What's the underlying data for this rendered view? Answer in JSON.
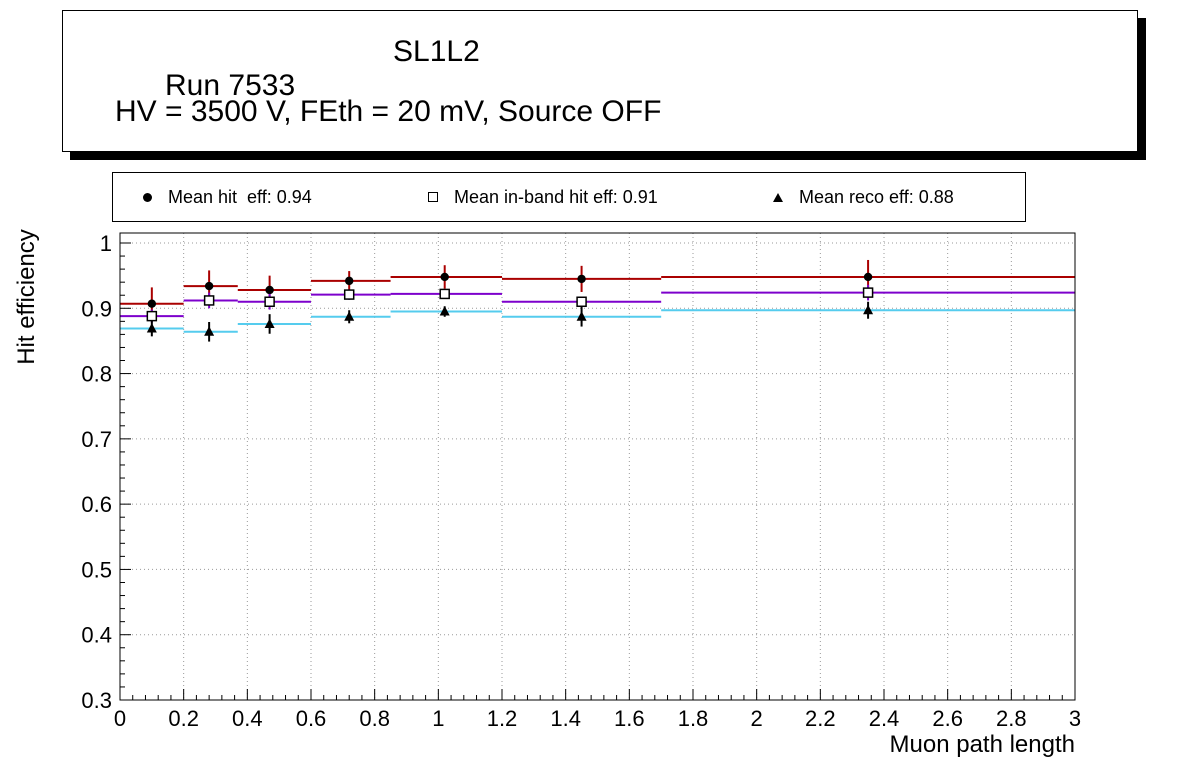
{
  "title_box": {
    "line1_left": "Run 7533",
    "line1_right": "SL1L2",
    "line2": "HV = 3500 V, FEth = 20 mV, Source OFF"
  },
  "legend": {
    "items": [
      {
        "marker": "circle",
        "label": "Mean hit  eff: 0.94"
      },
      {
        "marker": "square-open",
        "label": "Mean in-band hit eff: 0.91"
      },
      {
        "marker": "triangle",
        "label": "Mean reco eff: 0.88"
      }
    ]
  },
  "chart_data": {
    "type": "scatter",
    "title": "Run 7533          SL1L2",
    "subtitle": "HV = 3500 V, FEth = 20 mV, Source OFF",
    "xlabel": "Muon path length",
    "ylabel": "Hit efficiency",
    "xlim": [
      0,
      3
    ],
    "ylim": [
      0.3,
      1.0
    ],
    "grid": "dotted",
    "grid_color": "#9a9a9a",
    "legend_position": "top",
    "xtick_values": [
      0,
      0.2,
      0.4,
      0.6,
      0.8,
      1,
      1.2,
      1.4,
      1.6,
      1.8,
      2,
      2.2,
      2.4,
      2.6,
      2.8,
      3
    ],
    "xtick_labels": [
      "0",
      "0.2",
      "0.4",
      "0.6",
      "0.8",
      "1",
      "1.2",
      "1.4",
      "1.6",
      "1.8",
      "2",
      "2.2",
      "2.4",
      "2.6",
      "2.8",
      "3"
    ],
    "ytick_values": [
      0.3,
      0.4,
      0.5,
      0.6,
      0.7,
      0.8,
      0.9,
      1.0
    ],
    "ytick_labels": [
      "0.3",
      "0.4",
      "0.5",
      "0.6",
      "0.7",
      "0.8",
      "0.9",
      "1"
    ],
    "series": [
      {
        "id": "hit-eff",
        "name": "Mean hit eff",
        "mean": 0.94,
        "marker": "circle",
        "marker_color": "#000000",
        "line_color": "#aa0000",
        "err_color": "#aa0000",
        "points": [
          {
            "x": 0.1,
            "xlow": 0.0,
            "xhigh": 0.2,
            "y": 0.907,
            "yerr": 0.025
          },
          {
            "x": 0.28,
            "xlow": 0.2,
            "xhigh": 0.37,
            "y": 0.934,
            "yerr": 0.024
          },
          {
            "x": 0.47,
            "xlow": 0.37,
            "xhigh": 0.6,
            "y": 0.928,
            "yerr": 0.022
          },
          {
            "x": 0.72,
            "xlow": 0.6,
            "xhigh": 0.85,
            "y": 0.942,
            "yerr": 0.015
          },
          {
            "x": 1.02,
            "xlow": 0.85,
            "xhigh": 1.2,
            "y": 0.948,
            "yerr": 0.018
          },
          {
            "x": 1.45,
            "xlow": 1.2,
            "xhigh": 1.7,
            "y": 0.945,
            "yerr": 0.02
          },
          {
            "x": 2.35,
            "xlow": 1.7,
            "xhigh": 3.0,
            "y": 0.948,
            "yerr": 0.026
          }
        ]
      },
      {
        "id": "in-band-hit-eff",
        "name": "Mean in-band hit eff",
        "mean": 0.91,
        "marker": "square-open",
        "marker_color": "#000000",
        "line_color": "#7d00cc",
        "err_color": "#7d00cc",
        "points": [
          {
            "x": 0.1,
            "xlow": 0.0,
            "xhigh": 0.2,
            "y": 0.888,
            "yerr": 0.01
          },
          {
            "x": 0.28,
            "xlow": 0.2,
            "xhigh": 0.37,
            "y": 0.912,
            "yerr": 0.012
          },
          {
            "x": 0.47,
            "xlow": 0.37,
            "xhigh": 0.6,
            "y": 0.91,
            "yerr": 0.012
          },
          {
            "x": 0.72,
            "xlow": 0.6,
            "xhigh": 0.85,
            "y": 0.921,
            "yerr": 0.008
          },
          {
            "x": 1.02,
            "xlow": 0.85,
            "xhigh": 1.2,
            "y": 0.922,
            "yerr": 0.006
          },
          {
            "x": 1.45,
            "xlow": 1.2,
            "xhigh": 1.7,
            "y": 0.91,
            "yerr": 0.008
          },
          {
            "x": 2.35,
            "xlow": 1.7,
            "xhigh": 3.0,
            "y": 0.924,
            "yerr": 0.012
          }
        ]
      },
      {
        "id": "reco-eff",
        "name": "Mean reco eff",
        "mean": 0.88,
        "marker": "triangle",
        "marker_color": "#000000",
        "line_color": "#55ccee",
        "err_color": "#000000",
        "points": [
          {
            "x": 0.1,
            "xlow": 0.0,
            "xhigh": 0.2,
            "y": 0.869,
            "yerr": 0.012
          },
          {
            "x": 0.28,
            "xlow": 0.2,
            "xhigh": 0.37,
            "y": 0.864,
            "yerr": 0.015
          },
          {
            "x": 0.47,
            "xlow": 0.37,
            "xhigh": 0.6,
            "y": 0.876,
            "yerr": 0.015
          },
          {
            "x": 0.72,
            "xlow": 0.6,
            "xhigh": 0.85,
            "y": 0.887,
            "yerr": 0.01
          },
          {
            "x": 1.02,
            "xlow": 0.85,
            "xhigh": 1.2,
            "y": 0.895,
            "yerr": 0.008
          },
          {
            "x": 1.45,
            "xlow": 1.2,
            "xhigh": 1.7,
            "y": 0.887,
            "yerr": 0.015
          },
          {
            "x": 2.35,
            "xlow": 1.7,
            "xhigh": 3.0,
            "y": 0.897,
            "yerr": 0.013
          }
        ]
      }
    ]
  }
}
